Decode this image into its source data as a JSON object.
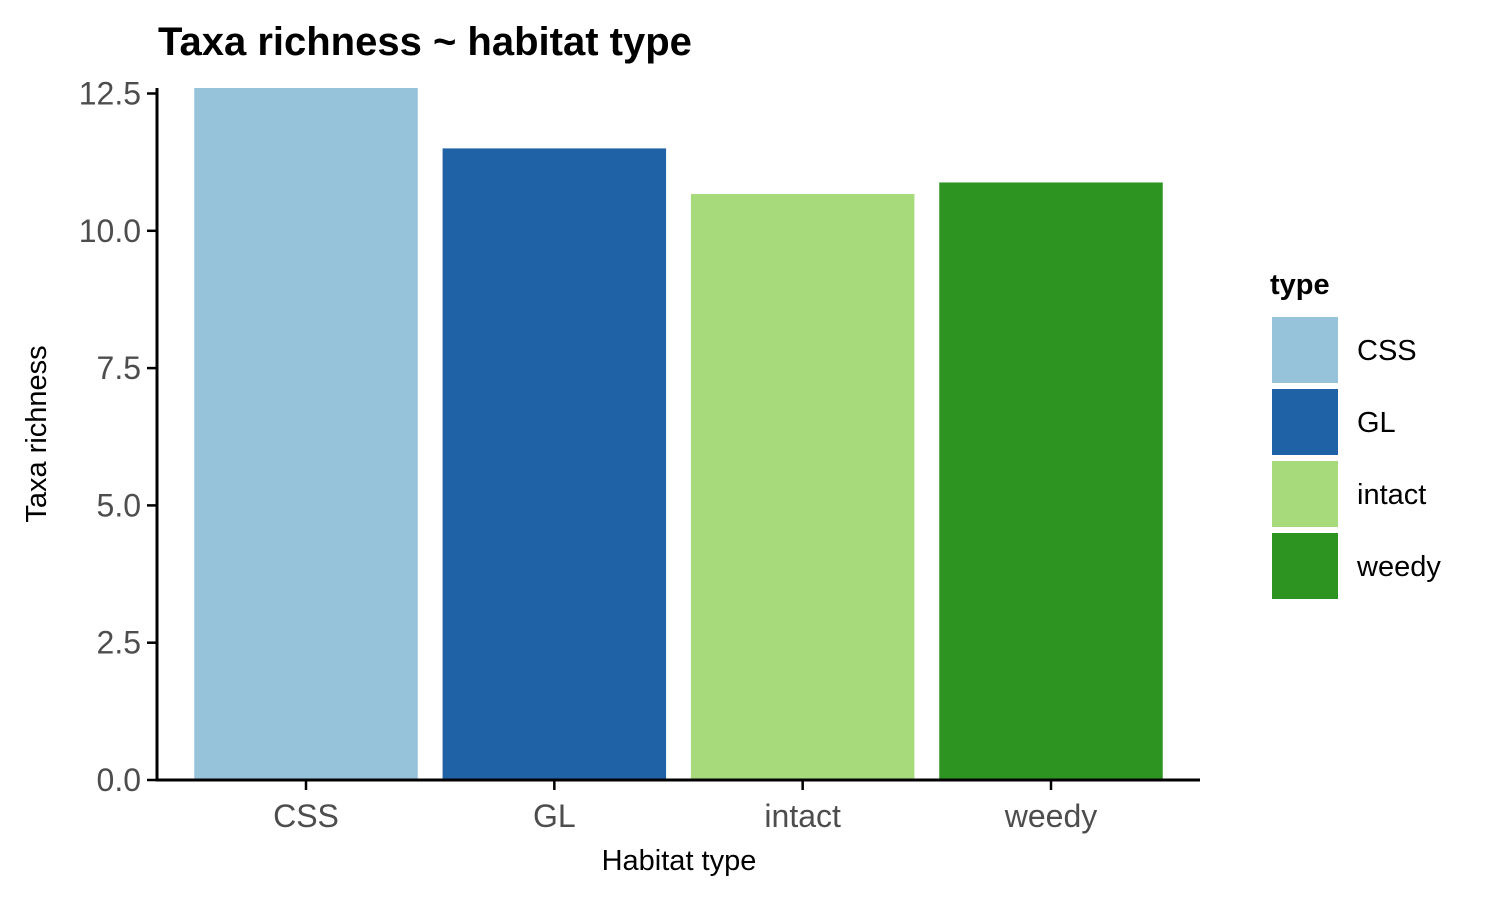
{
  "chart_data": {
    "type": "bar",
    "title": "Taxa richness ~ habitat type",
    "xlabel": "Habitat type",
    "ylabel": "Taxa richness",
    "categories": [
      "CSS",
      "GL",
      "intact",
      "weedy"
    ],
    "values": [
      12.6,
      11.5,
      10.67,
      10.88
    ],
    "colors": [
      "#96c2da",
      "#1f62a5",
      "#a6da7a",
      "#2e9421"
    ],
    "ylim": [
      0,
      12.6
    ],
    "yticks": [
      0,
      2.5,
      5,
      7.5,
      10,
      12.5
    ],
    "ytick_labels": [
      "0.0",
      "2.5",
      "5.0",
      "7.5",
      "10.0",
      "12.5"
    ],
    "grid": false,
    "legend": {
      "title": "type",
      "placement": "right",
      "entries": [
        "CSS",
        "GL",
        "intact",
        "weedy"
      ]
    }
  }
}
